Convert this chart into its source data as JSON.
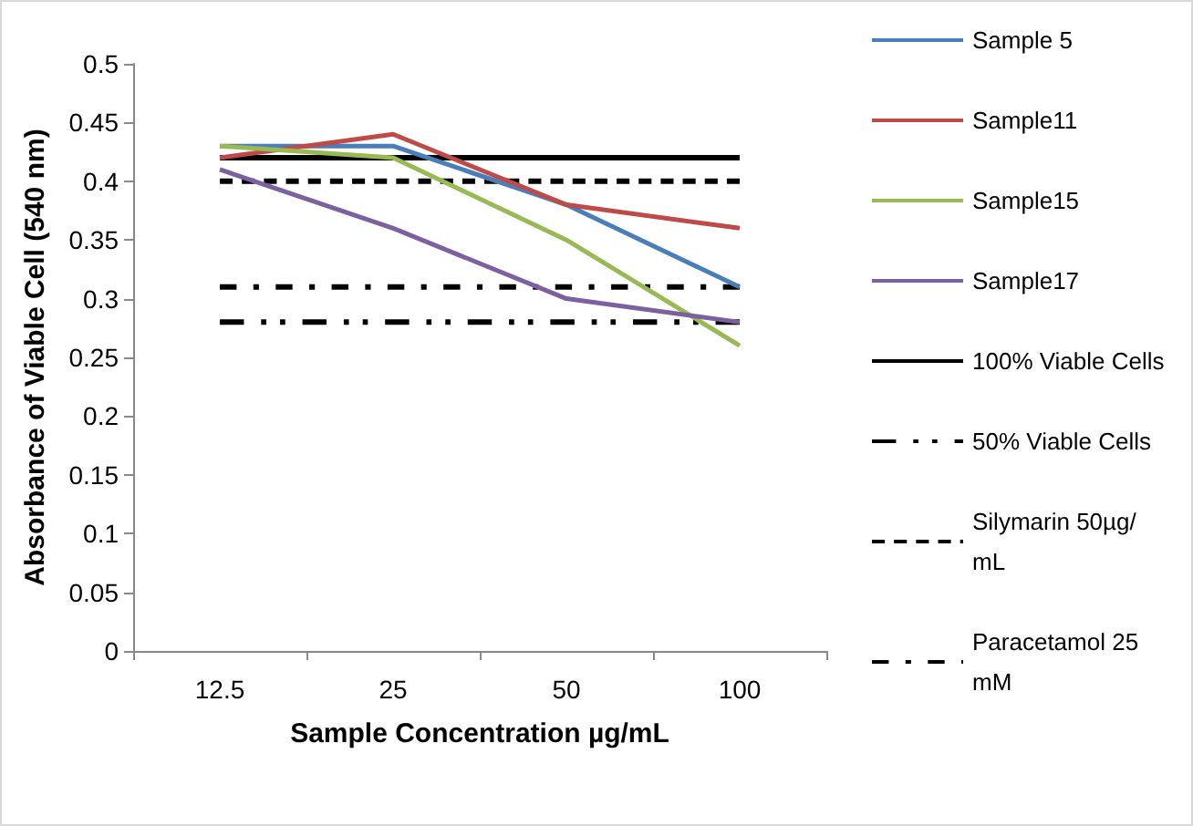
{
  "chart_data": {
    "type": "line",
    "xlabel": "Sample Concentration µg/mL",
    "ylabel": "Absorbance of Viable Cell (540 nm)",
    "categories": [
      "12.5",
      "25",
      "50",
      "100"
    ],
    "ylim": [
      0,
      0.5
    ],
    "yticks": [
      0,
      0.05,
      0.1,
      0.15,
      0.2,
      0.25,
      0.3,
      0.35,
      0.4,
      0.45,
      0.5
    ],
    "grid": false,
    "legend": "right",
    "marker": "none",
    "series": [
      {
        "name": "Sample 5",
        "color": "#4a7ebb",
        "values": [
          0.43,
          0.43,
          0.38,
          0.31
        ]
      },
      {
        "name": "Sample11",
        "color": "#be4b48",
        "values": [
          0.42,
          0.44,
          0.38,
          0.36
        ]
      },
      {
        "name": "Sample15",
        "color": "#98b954",
        "values": [
          0.43,
          0.42,
          0.35,
          0.26
        ]
      },
      {
        "name": "Sample17",
        "color": "#7d60a0",
        "values": [
          0.41,
          0.36,
          0.3,
          0.28
        ]
      },
      {
        "name": "100% Viable Cells",
        "color": "#000000",
        "line_style": "solid",
        "values": [
          0.42,
          0.42,
          0.42,
          0.42
        ]
      },
      {
        "name": "50% Viable Cells",
        "color": "#000000",
        "line_style": "dotted",
        "values": [
          0.28,
          0.28,
          0.28,
          0.28
        ]
      },
      {
        "name": "Silymarin 50µg/mL",
        "color": "#000000",
        "line_style": "dashed",
        "values": [
          0.4,
          0.4,
          0.4,
          0.4
        ]
      },
      {
        "name": "Paracetamol 25 mM",
        "color": "#000000",
        "line_style": "dashed",
        "values": [
          0.31,
          0.31,
          0.31,
          0.31
        ]
      }
    ]
  }
}
